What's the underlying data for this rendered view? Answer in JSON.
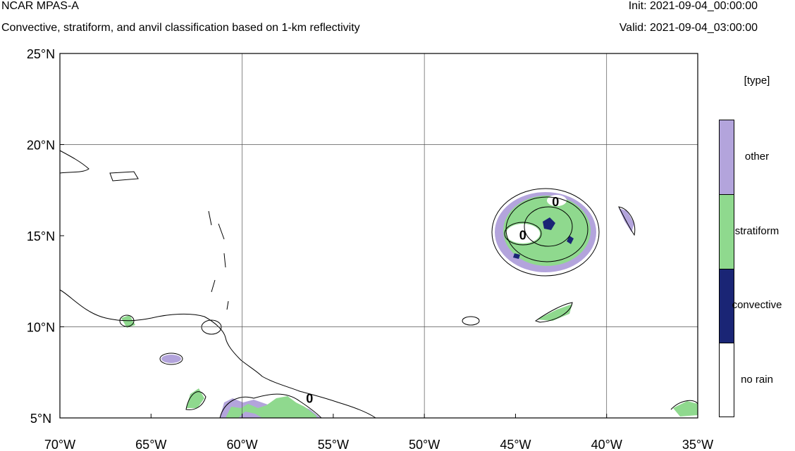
{
  "header": {
    "title": "NCAR MPAS-A",
    "subtitle": "Convective, stratiform, and anvil classification based on 1-km reflectivity",
    "init": "Init: 2021-09-04_00:00:00",
    "valid": "Valid: 2021-09-04_03:00:00"
  },
  "map": {
    "lon_range": [
      -70,
      -35
    ],
    "lat_range": [
      5,
      25
    ],
    "lon_ticks": [
      {
        "value": -70,
        "label": "70°W"
      },
      {
        "value": -65,
        "label": "65°W"
      },
      {
        "value": -60,
        "label": "60°W"
      },
      {
        "value": -55,
        "label": "55°W"
      },
      {
        "value": -50,
        "label": "50°W"
      },
      {
        "value": -45,
        "label": "45°W"
      },
      {
        "value": -40,
        "label": "40°W"
      },
      {
        "value": -35,
        "label": "35°W"
      }
    ],
    "lat_ticks": [
      {
        "value": 5,
        "label": "5°N"
      },
      {
        "value": 10,
        "label": "10°N"
      },
      {
        "value": 15,
        "label": "15°N"
      },
      {
        "value": 20,
        "label": "20°N"
      },
      {
        "value": 25,
        "label": "25°N"
      }
    ],
    "gridlines_lon": [
      -60,
      -50,
      -40
    ],
    "gridlines_lat": [
      10,
      20
    ],
    "contour_labels": [
      {
        "text": "0",
        "lon": -42.8,
        "lat": 16.9
      },
      {
        "text": "0",
        "lon": -44.6,
        "lat": 15.05
      },
      {
        "text": "0",
        "lon": -56.3,
        "lat": 6.1
      }
    ]
  },
  "legend": {
    "title": "[type]",
    "items": [
      {
        "label": "other",
        "color": "#b3a4dc"
      },
      {
        "label": "stratiform",
        "color": "#8fd98e"
      },
      {
        "label": "convective",
        "color": "#1a2575"
      },
      {
        "label": "no rain",
        "color": "#ffffff"
      }
    ]
  },
  "colors": {
    "other": "#b3a4dc",
    "stratiform": "#8fd98e",
    "convective": "#1a2575",
    "coast": "#000000",
    "grid": "#555555"
  }
}
